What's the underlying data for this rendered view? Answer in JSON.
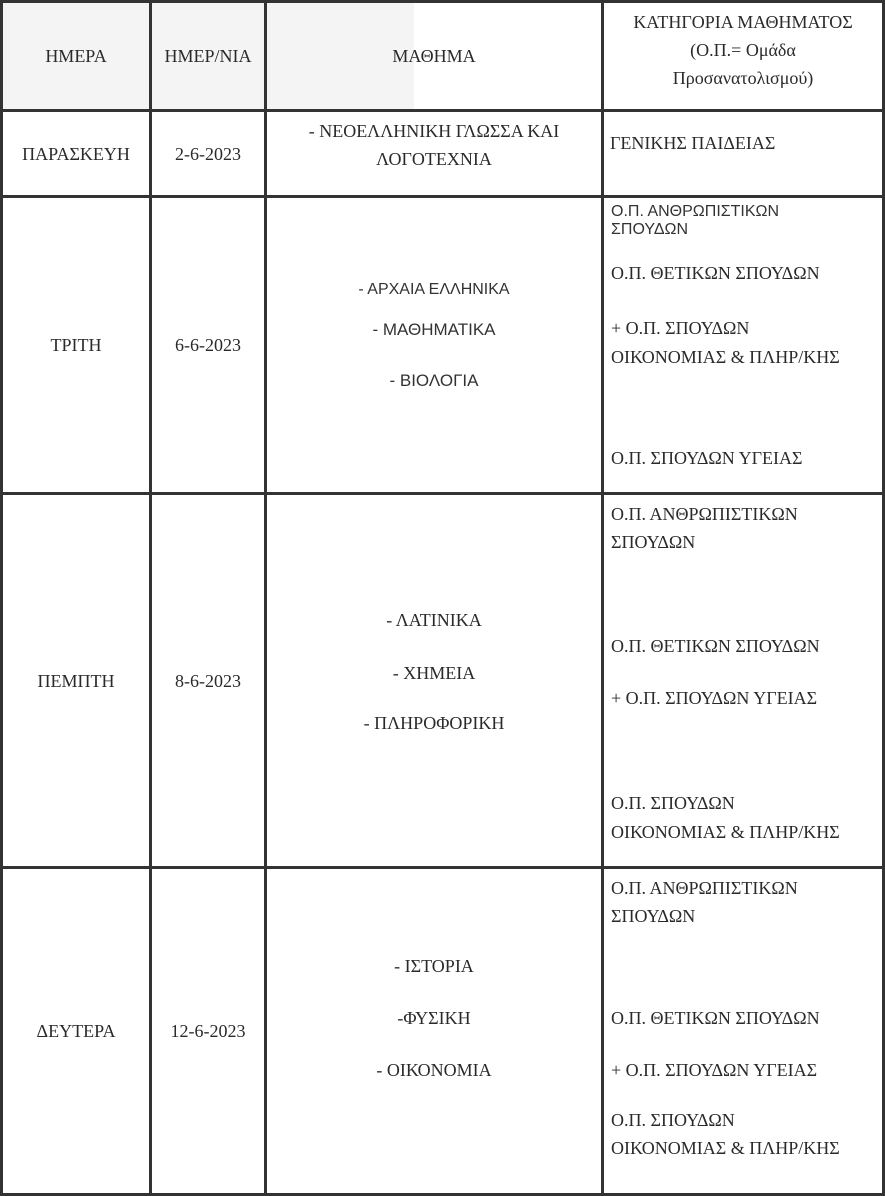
{
  "header": {
    "day": "ΗΜΕΡΑ",
    "date": "ΗΜΕΡ/ΝΙΑ",
    "subject": "ΜΑΘΗΜΑ",
    "category_line1": "ΚΑΤΗΓΟΡΙΑ ΜΑΘΗΜΑΤΟΣ",
    "category_line2": "(Ο.Π.= Ομάδα",
    "category_line3": "Προσανατολισμού)"
  },
  "rows": [
    {
      "day": "ΠΑΡΑΣΚΕΥΗ",
      "date": "2-6-2023",
      "subjects": [
        "- ΝΕΟΕΛΛΗΝΙΚΗ ΓΛΩΣΣΑ ΚΑΙ",
        "ΛΟΓΟΤΕΧΝΙΑ"
      ],
      "categories": [
        "ΓΕΝΙΚΗΣ ΠΑΙΔΕΙΑΣ"
      ]
    },
    {
      "day": "ΤΡΙΤΗ",
      "date": "6-6-2023",
      "subjects": [
        "- ΑΡΧΑΙΑ ΕΛΛΗΝΙΚΑ",
        "- ΜΑΘΗΜΑΤΙΚΑ",
        "- ΒΙΟΛΟΓΙΑ"
      ],
      "categories": [
        "Ο.Π. ΑΝΘΡΩΠΙΣΤΙΚΩΝ",
        "ΣΠΟΥΔΩΝ",
        "Ο.Π. ΘΕΤΙΚΩΝ ΣΠΟΥΔΩΝ",
        "+ Ο.Π. ΣΠΟΥΔΩΝ",
        "ΟΙΚΟΝΟΜΙΑΣ & ΠΛΗΡ/ΚΗΣ",
        "Ο.Π. ΣΠΟΥΔΩΝ ΥΓΕΙΑΣ"
      ]
    },
    {
      "day": "ΠΕΜΠΤΗ",
      "date": "8-6-2023",
      "subjects": [
        "- ΛΑΤΙΝΙΚΑ",
        "- ΧΗΜΕΙΑ",
        "- ΠΛΗΡΟΦΟΡΙΚΗ"
      ],
      "categories": [
        "Ο.Π. ΑΝΘΡΩΠΙΣΤΙΚΩΝ",
        "ΣΠΟΥΔΩΝ",
        "Ο.Π. ΘΕΤΙΚΩΝ ΣΠΟΥΔΩΝ",
        "+ Ο.Π. ΣΠΟΥΔΩΝ ΥΓΕΙΑΣ",
        "Ο.Π. ΣΠΟΥΔΩΝ",
        "ΟΙΚΟΝΟΜΙΑΣ & ΠΛΗΡ/ΚΗΣ"
      ]
    },
    {
      "day": "ΔΕΥΤΕΡΑ",
      "date": "12-6-2023",
      "subjects": [
        "- ΙΣΤΟΡΙΑ",
        "-ΦΥΣΙΚΗ",
        "- ΟΙΚΟΝΟΜΙΑ"
      ],
      "categories": [
        "Ο.Π. ΑΝΘΡΩΠΙΣΤΙΚΩΝ",
        "ΣΠΟΥΔΩΝ",
        "Ο.Π. ΘΕΤΙΚΩΝ ΣΠΟΥΔΩΝ",
        "+ Ο.Π. ΣΠΟΥΔΩΝ ΥΓΕΙΑΣ",
        "Ο.Π. ΣΠΟΥΔΩΝ",
        "ΟΙΚΟΝΟΜΙΑΣ & ΠΛΗΡ/ΚΗΣ"
      ]
    }
  ]
}
